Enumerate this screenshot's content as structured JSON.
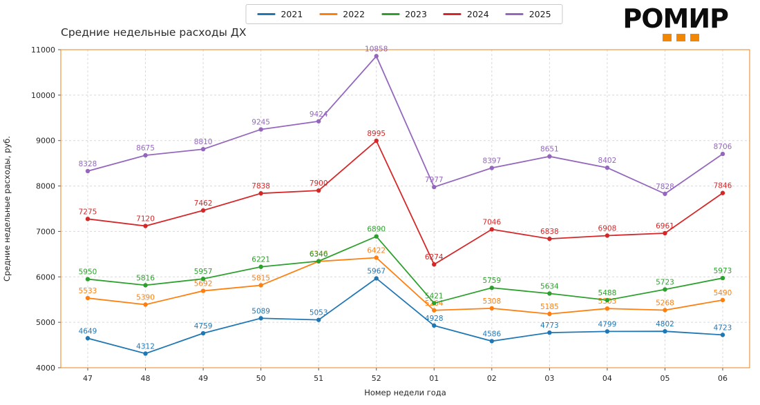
{
  "logo": {
    "text": "РОМИР",
    "accent_color": "#f28705",
    "squares": 3
  },
  "chart_data": {
    "type": "line",
    "title": "Средние недельные расходы ДХ",
    "xlabel": "Номер недели года",
    "ylabel": "Средние недельные расходы, руб.",
    "x_categories": [
      "47",
      "48",
      "49",
      "50",
      "51",
      "52",
      "01",
      "02",
      "03",
      "04",
      "05",
      "06"
    ],
    "ylim": [
      4000,
      11000
    ],
    "yticks": [
      4000,
      5000,
      6000,
      7000,
      8000,
      9000,
      10000,
      11000
    ],
    "grid": true,
    "legend_position": "top-center",
    "frame_color": "#e8821e",
    "grid_color": "#d8d8d8",
    "tick_color": "#262626",
    "series": [
      {
        "name": "2021",
        "color": "#1f77b4",
        "values": [
          4649,
          4312,
          4759,
          5089,
          5053,
          5967,
          4928,
          4586,
          4773,
          4799,
          4802,
          4723
        ]
      },
      {
        "name": "2022",
        "color": "#ff7f0e",
        "values": [
          5533,
          5390,
          5692,
          5815,
          6340,
          6422,
          5264,
          5308,
          5185,
          5303,
          5268,
          5490
        ]
      },
      {
        "name": "2023",
        "color": "#2ca02c",
        "values": [
          5950,
          5816,
          5957,
          6221,
          6346,
          6890,
          5421,
          5759,
          5634,
          5488,
          5723,
          5973
        ]
      },
      {
        "name": "2024",
        "color": "#d62728",
        "values": [
          7275,
          7120,
          7462,
          7838,
          7900,
          8995,
          6274,
          7046,
          6838,
          6908,
          6961,
          7846
        ]
      },
      {
        "name": "2025",
        "color": "#9467bd",
        "values": [
          8328,
          8675,
          8810,
          9245,
          9424,
          10858,
          7977,
          8397,
          8651,
          8402,
          7828,
          8706
        ]
      }
    ]
  }
}
